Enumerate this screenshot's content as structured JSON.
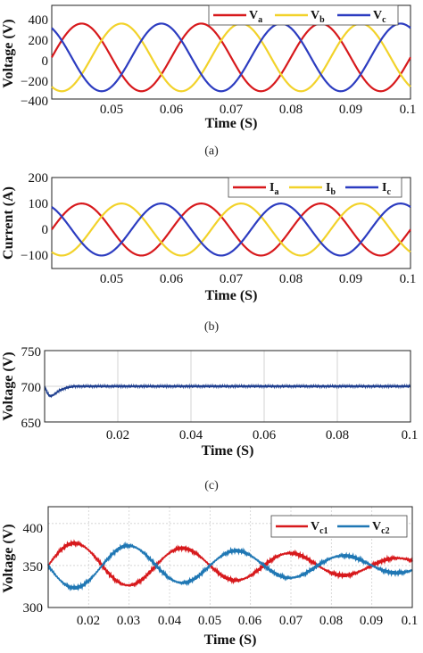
{
  "chart_data": [
    {
      "id": "a",
      "type": "line",
      "caption": "(a)",
      "xlabel": "Time (S)",
      "ylabel": "Voltage (V)",
      "xlim": [
        0.04,
        0.1
      ],
      "ylim": [
        -400,
        500
      ],
      "xticks": [
        "0.05",
        "0.06",
        "0.07",
        "0.08",
        "0.09",
        "0.1"
      ],
      "yticks": [
        "400",
        "200",
        "0",
        "−200",
        "−400"
      ],
      "grid": false,
      "legend_position": "top-right",
      "waveform": {
        "amplitude": 325,
        "frequency_hz": 50,
        "phase_a_zero_crossing_s": 0.04
      },
      "series": [
        {
          "name": "V",
          "sub": "a",
          "color": "#d7191c",
          "phase_deg": 0
        },
        {
          "name": "V",
          "sub": "b",
          "color": "#f2d22a",
          "phase_deg": -120
        },
        {
          "name": "V",
          "sub": "c",
          "color": "#2c3cc0",
          "phase_deg": 120
        }
      ]
    },
    {
      "id": "b",
      "type": "line",
      "caption": "(b)",
      "xlabel": "Time (S)",
      "ylabel": "Current (A)",
      "xlim": [
        0.04,
        0.1
      ],
      "ylim": [
        -150,
        200
      ],
      "xticks": [
        "0.05",
        "0.06",
        "0.07",
        "0.08",
        "0.09",
        "0.1"
      ],
      "yticks": [
        "200",
        "100",
        "0",
        "−100"
      ],
      "grid": false,
      "legend_position": "top-right",
      "waveform": {
        "amplitude": 100,
        "frequency_hz": 50,
        "phase_a_zero_crossing_s": 0.04
      },
      "series": [
        {
          "name": "I",
          "sub": "a",
          "color": "#d7191c",
          "phase_deg": 0
        },
        {
          "name": "I",
          "sub": "b",
          "color": "#f2d22a",
          "phase_deg": -120
        },
        {
          "name": "I",
          "sub": "c",
          "color": "#2c3cc0",
          "phase_deg": 120
        }
      ]
    },
    {
      "id": "c",
      "type": "line",
      "caption": "(c)",
      "xlabel": "Time (S)",
      "ylabel": "Voltage (V)",
      "xlim": [
        0,
        0.1
      ],
      "ylim": [
        650,
        750
      ],
      "xticks": [
        "0.02",
        "0.04",
        "0.06",
        "0.08",
        "0.1"
      ],
      "yticks": [
        "750",
        "700",
        "650"
      ],
      "grid": true,
      "series": [
        {
          "color": "#1f3f8f",
          "x": [
            0,
            0.0008,
            0.0015,
            0.0025,
            0.004,
            0.006,
            0.008,
            0.1
          ],
          "y": [
            700,
            690,
            686,
            688,
            694,
            698,
            700,
            700
          ],
          "ripple": 1.5
        }
      ]
    },
    {
      "id": "d",
      "type": "line",
      "xlabel": "Time (S)",
      "ylabel": "Voltage (V)",
      "xlim": [
        0.01,
        0.1
      ],
      "ylim": [
        300,
        420
      ],
      "xticks": [
        "0.02",
        "0.03",
        "0.04",
        "0.05",
        "0.06",
        "0.07",
        "0.08",
        "0.09",
        "0.1"
      ],
      "yticks": [
        "400",
        "350",
        "300"
      ],
      "grid": true,
      "legend_position": "top-right",
      "waveform": {
        "mean": 350,
        "frequency_hz": 37.5,
        "start_s": 0.01,
        "amplitude_start": 28,
        "amplitude_end": 8
      },
      "series": [
        {
          "name": "V",
          "sub": "c1",
          "color": "#d7191c",
          "sign": 1
        },
        {
          "name": "V",
          "sub": "c2",
          "color": "#1f77b4",
          "sign": -1
        }
      ]
    }
  ]
}
